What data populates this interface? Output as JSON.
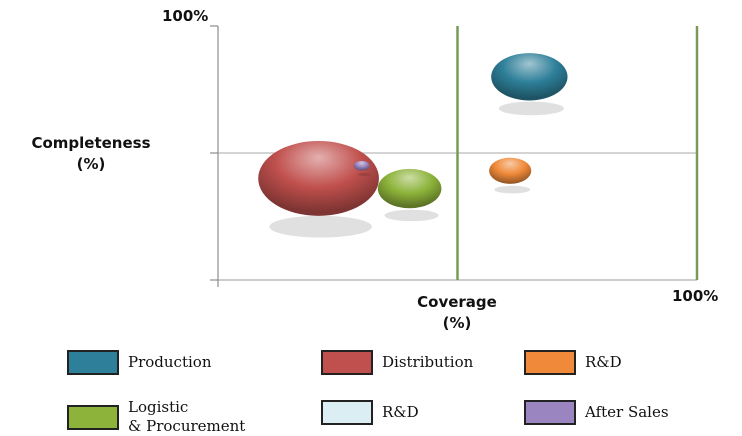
{
  "chart_data": {
    "type": "scatter",
    "subtype": "bubble",
    "xlabel_line1": "Coverage",
    "xlabel_line2": "(%)",
    "ylabel_line1": "Completeness",
    "ylabel_line2": "(%)",
    "x_max_label": "100%",
    "y_max_label": "100%",
    "xlim": [
      0,
      100
    ],
    "ylim": [
      0,
      100
    ],
    "grid": "midlines",
    "legend_position": "bottom",
    "series": [
      {
        "name": "Production",
        "x": 65,
        "y": 80,
        "size": 7200,
        "color": "#2e7f99"
      },
      {
        "name": "Distribution",
        "x": 21,
        "y": 40,
        "size": 18000,
        "color": "#c0504d"
      },
      {
        "name": "R&D",
        "x": 61,
        "y": 43,
        "size": 2200,
        "color": "#f08a3a"
      },
      {
        "name": "Logistic\n& Procurement",
        "x": 40,
        "y": 36,
        "size": 5000,
        "color": "#8db33a"
      },
      {
        "name": "R&D",
        "x": 34,
        "y": 45,
        "size": 300,
        "color": "#dbeef4"
      },
      {
        "name": "After Sales",
        "x": 30,
        "y": 45,
        "size": 300,
        "color": "#9b85c0"
      }
    ]
  }
}
